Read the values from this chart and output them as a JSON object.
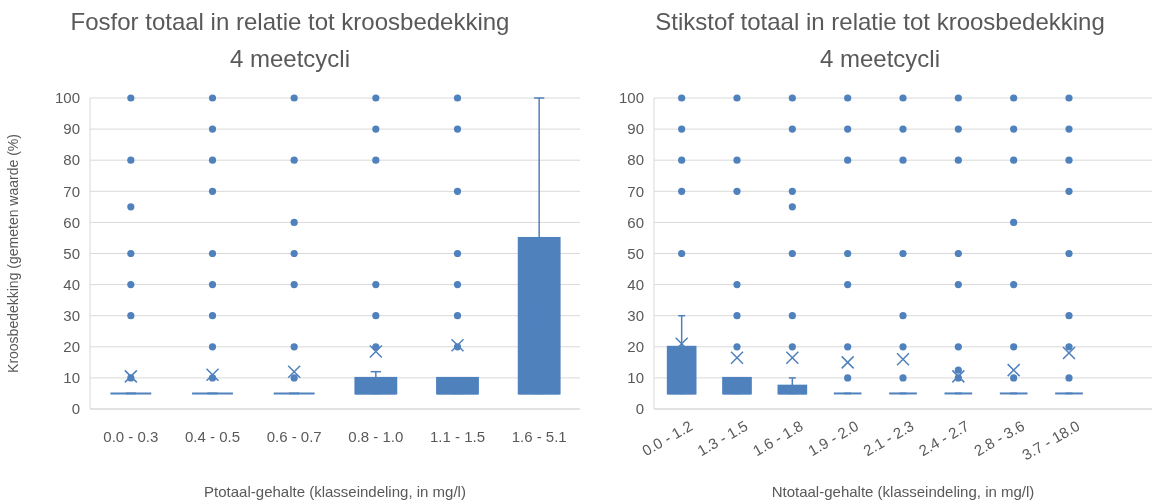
{
  "chart_data": [
    {
      "type": "box",
      "title": "Fosfor totaal in relatie tot kroosbedekking",
      "subtitle": "4 meetcycli",
      "xlabel": "Ptotaal-gehalte (klasseindeling, in mg/l)",
      "ylabel": "Kroosbedekking (gemeten waarde (%)",
      "color": "#4f81bd",
      "grid": "y",
      "marker": "circle",
      "categories": [
        "0.0 - 0.3",
        "0.4 - 0.5",
        "0.6 - 0.7",
        "0.8 - 1.0",
        "1.1 - 1.5",
        "1.6 - 5.1"
      ],
      "ylim": [
        0,
        100
      ],
      "yticks": [
        0,
        10,
        20,
        30,
        40,
        50,
        60,
        70,
        80,
        90,
        100
      ],
      "boxes": [
        {
          "low": 5,
          "q1": 5,
          "median": 5,
          "q3": 5,
          "high": 5,
          "mean": 10.5,
          "outliers": [
            10,
            30,
            40,
            50,
            65,
            80,
            100
          ]
        },
        {
          "low": 5,
          "q1": 5,
          "median": 5,
          "q3": 5,
          "high": 5,
          "mean": 11,
          "outliers": [
            10,
            20,
            30,
            40,
            50,
            70,
            80,
            90,
            100
          ]
        },
        {
          "low": 5,
          "q1": 5,
          "median": 5,
          "q3": 5,
          "high": 5,
          "mean": 12,
          "outliers": [
            10,
            20,
            40,
            50,
            60,
            80,
            100
          ]
        },
        {
          "low": 5,
          "q1": 5,
          "median": 5,
          "q3": 10,
          "high": 12,
          "mean": 18.5,
          "outliers": [
            20,
            30,
            40,
            80,
            90,
            100
          ]
        },
        {
          "low": 5,
          "q1": 5,
          "median": 5,
          "q3": 10,
          "high": 10,
          "mean": 20.5,
          "outliers": [
            20,
            30,
            40,
            50,
            70,
            90,
            100
          ]
        },
        {
          "low": 5,
          "q1": 5,
          "median": 5,
          "q3": 55,
          "high": 100,
          "mean": 30
        }
      ]
    },
    {
      "type": "box",
      "title": "Stikstof totaal in relatie tot kroosbedekking",
      "subtitle": "4 meetcycli",
      "xlabel": "Ntotaal-gehalte (klasseindeling, in mg/l)",
      "color": "#4f81bd",
      "grid": "y",
      "marker": "circle",
      "categories": [
        "0.0 - 1.2",
        "1.3 - 1.5",
        "1.6 - 1.8",
        "1.9 - 2.0",
        "2.1 - 2.3",
        "2.4 - 2.7",
        "2.8 - 3.6",
        "3.7 - 18.0",
        null
      ],
      "ylim": [
        0,
        100
      ],
      "yticks": [
        0,
        10,
        20,
        30,
        40,
        50,
        60,
        70,
        80,
        90,
        100
      ],
      "boxes": [
        {
          "low": 5,
          "q1": 5,
          "median": 5,
          "q3": 20,
          "high": 30,
          "mean": 21,
          "outliers": [
            50,
            70,
            80,
            90,
            100
          ]
        },
        {
          "low": 5,
          "q1": 5,
          "median": 5,
          "q3": 10,
          "high": 10,
          "mean": 16.5,
          "outliers": [
            20,
            30,
            40,
            70,
            80,
            100
          ]
        },
        {
          "low": 5,
          "q1": 5,
          "median": 5,
          "q3": 7.5,
          "high": 10,
          "mean": 16.5,
          "outliers": [
            20,
            30,
            50,
            65,
            70,
            90,
            100
          ]
        },
        {
          "low": 5,
          "q1": 5,
          "median": 5,
          "q3": 5,
          "high": 5,
          "mean": 15,
          "outliers": [
            10,
            20,
            40,
            50,
            80,
            90,
            100
          ]
        },
        {
          "low": 5,
          "q1": 5,
          "median": 5,
          "q3": 5,
          "high": 5,
          "mean": 16,
          "outliers": [
            10,
            20,
            30,
            50,
            80,
            90,
            100
          ]
        },
        {
          "low": 5,
          "q1": 5,
          "median": 5,
          "q3": 5,
          "high": 5,
          "mean": 10.5,
          "outliers": [
            10,
            12.5,
            20,
            40,
            50,
            80,
            90,
            100
          ]
        },
        {
          "low": 5,
          "q1": 5,
          "median": 5,
          "q3": 5,
          "high": 5,
          "mean": 12.5,
          "outliers": [
            10,
            20,
            40,
            60,
            80,
            90,
            100
          ]
        },
        {
          "low": 5,
          "q1": 5,
          "median": 5,
          "q3": 5,
          "high": 5,
          "mean": 18,
          "outliers": [
            10,
            20,
            30,
            50,
            70,
            80,
            90,
            100
          ]
        },
        null
      ]
    }
  ]
}
